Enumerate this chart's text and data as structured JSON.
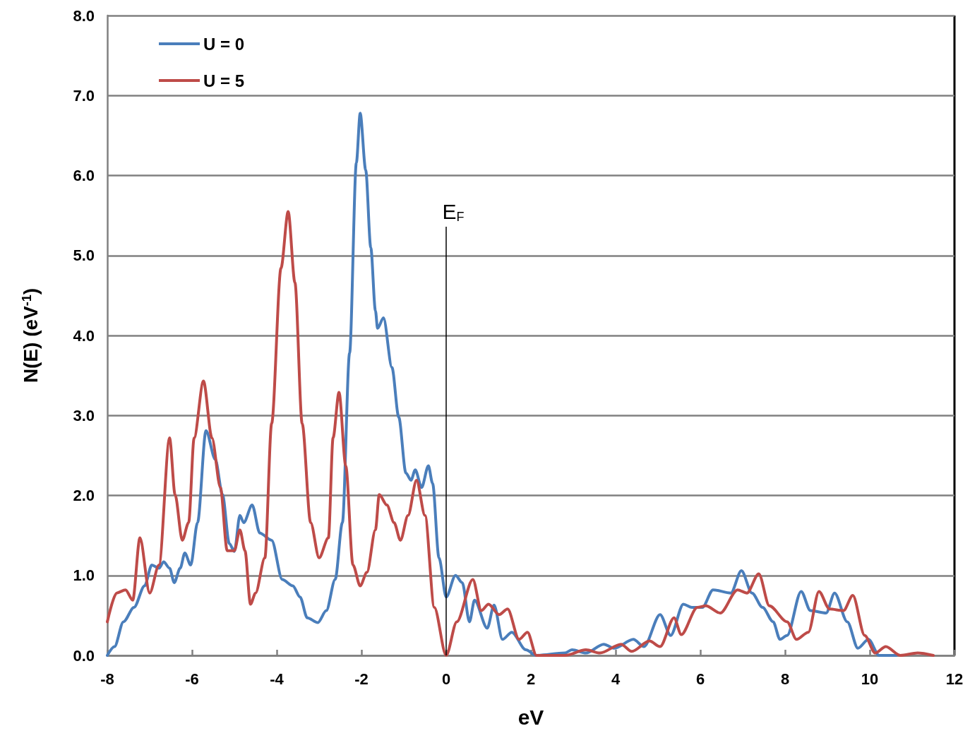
{
  "chart_data": {
    "type": "line",
    "xlabel": "eV",
    "ylabel": "N(E) (eV$^{-1}$)",
    "xlim": [
      -8,
      12
    ],
    "xticks": [
      -8,
      -6,
      -4,
      -2,
      0,
      2,
      4,
      6,
      8,
      10,
      12
    ],
    "ylim": [
      0,
      8
    ],
    "yticks": [
      {
        "value": 0,
        "label": "0.0"
      },
      {
        "value": 1,
        "label": "1.0"
      },
      {
        "value": 2,
        "label": "2.0"
      },
      {
        "value": 3,
        "label": "3.0"
      },
      {
        "value": 4,
        "label": "4.0"
      },
      {
        "value": 5,
        "label": "5.0"
      },
      {
        "value": 6,
        "label": "6.0"
      },
      {
        "value": 7,
        "label": "7.0"
      },
      {
        "value": 8,
        "label": "8.0"
      }
    ],
    "grid": "y",
    "legend": "top left",
    "marker": "none",
    "line_style": "solid",
    "ref_lines": [
      {
        "axis": "x",
        "value": 0,
        "label": "E$_{F}$",
        "color": "#000000"
      }
    ],
    "series": [
      {
        "name": "U = 0",
        "color": "#4a7ebb",
        "x": [
          -8,
          -7.83,
          -7.62,
          -7.37,
          -7.12,
          -6.95,
          -6.78,
          -6.67,
          -6.53,
          -6.42,
          -6.28,
          -6.17,
          -6.03,
          -5.87,
          -5.67,
          -5.45,
          -5.28,
          -5.12,
          -5.0,
          -4.87,
          -4.78,
          -4.58,
          -4.4,
          -4.12,
          -3.87,
          -3.62,
          -3.45,
          -3.28,
          -3.03,
          -2.83,
          -2.62,
          -2.45,
          -2.28,
          -2.12,
          -2.03,
          -1.9,
          -1.78,
          -1.67,
          -1.62,
          -1.48,
          -1.28,
          -1.12,
          -0.95,
          -0.83,
          -0.73,
          -0.58,
          -0.42,
          -0.32,
          -0.17,
          0.0,
          0.22,
          0.38,
          0.55,
          0.67,
          0.97,
          1.13,
          1.33,
          1.55,
          1.88,
          2.13,
          2.8,
          2.97,
          3.3,
          3.72,
          3.97,
          4.42,
          4.67,
          5.05,
          5.3,
          5.6,
          5.8,
          6.05,
          6.3,
          6.72,
          6.97,
          7.22,
          7.47,
          7.72,
          7.88,
          8.05,
          8.38,
          8.6,
          8.97,
          9.17,
          9.47,
          9.72,
          9.97,
          10.22,
          10.63
        ],
        "values": [
          0,
          0.11,
          0.42,
          0.6,
          0.87,
          1.13,
          1.09,
          1.17,
          1.09,
          0.91,
          1.09,
          1.28,
          1.13,
          1.66,
          2.81,
          2.45,
          2.01,
          1.4,
          1.3,
          1.75,
          1.66,
          1.88,
          1.53,
          1.44,
          0.95,
          0.87,
          0.73,
          0.47,
          0.41,
          0.56,
          0.95,
          1.66,
          3.78,
          6.16,
          6.78,
          6.07,
          5.1,
          4.31,
          4.09,
          4.22,
          3.6,
          2.98,
          2.28,
          2.19,
          2.32,
          2.1,
          2.37,
          2.15,
          1.22,
          0.73,
          1.0,
          0.91,
          0.42,
          0.69,
          0.34,
          0.63,
          0.2,
          0.29,
          0.07,
          0,
          0.03,
          0.07,
          0.03,
          0.14,
          0.09,
          0.2,
          0.11,
          0.51,
          0.25,
          0.64,
          0.6,
          0.6,
          0.82,
          0.78,
          1.06,
          0.78,
          0.6,
          0.42,
          0.2,
          0.25,
          0.8,
          0.56,
          0.53,
          0.78,
          0.42,
          0.09,
          0.2,
          0,
          0
        ]
      },
      {
        "name": "U = 5",
        "color": "#be4b48",
        "x": [
          -8,
          -7.78,
          -7.57,
          -7.4,
          -7.23,
          -7.0,
          -6.78,
          -6.53,
          -6.4,
          -6.23,
          -6.08,
          -5.95,
          -5.73,
          -5.53,
          -5.33,
          -5.17,
          -5.0,
          -4.87,
          -4.75,
          -4.62,
          -4.5,
          -4.28,
          -4.12,
          -3.9,
          -3.73,
          -3.57,
          -3.4,
          -3.2,
          -3.0,
          -2.78,
          -2.67,
          -2.53,
          -2.37,
          -2.2,
          -2.03,
          -1.87,
          -1.67,
          -1.58,
          -1.4,
          -1.23,
          -1.08,
          -0.9,
          -0.7,
          -0.5,
          -0.28,
          0,
          0.25,
          0.63,
          0.83,
          1.0,
          1.25,
          1.45,
          1.72,
          1.92,
          2.13,
          2.8,
          3.3,
          3.63,
          4.13,
          4.38,
          4.8,
          5.05,
          5.38,
          5.55,
          5.93,
          6.13,
          6.47,
          6.88,
          7.1,
          7.38,
          7.63,
          8.05,
          8.27,
          8.55,
          8.8,
          9.05,
          9.38,
          9.6,
          9.88,
          10.13,
          10.38,
          10.72,
          11.13,
          11.5
        ],
        "values": [
          0.42,
          0.78,
          0.82,
          0.69,
          1.47,
          0.78,
          1.13,
          2.72,
          2.01,
          1.44,
          1.66,
          2.72,
          3.43,
          2.72,
          2.1,
          1.31,
          1.31,
          1.57,
          1.31,
          0.64,
          0.78,
          1.22,
          2.9,
          4.84,
          5.55,
          4.66,
          2.9,
          1.66,
          1.22,
          1.47,
          2.72,
          3.29,
          2.37,
          1.13,
          0.87,
          1.04,
          1.57,
          2.01,
          1.88,
          1.66,
          1.44,
          1.75,
          2.19,
          1.75,
          0.6,
          0,
          0.42,
          0.95,
          0.56,
          0.64,
          0.51,
          0.58,
          0.2,
          0.29,
          0,
          0,
          0.07,
          0.03,
          0.14,
          0.05,
          0.18,
          0.11,
          0.47,
          0.26,
          0.6,
          0.62,
          0.53,
          0.82,
          0.78,
          1.02,
          0.62,
          0.42,
          0.2,
          0.29,
          0.8,
          0.58,
          0.56,
          0.75,
          0.25,
          0.03,
          0.11,
          0,
          0.03,
          0
        ]
      }
    ]
  }
}
